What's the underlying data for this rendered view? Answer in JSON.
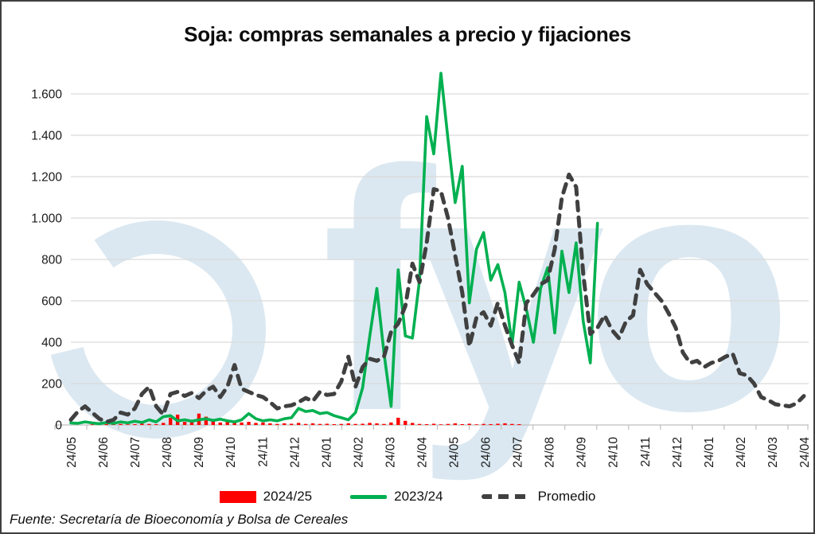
{
  "title": "Soja: compras semanales a precio y fijaciones",
  "source": "Fuente: Secretaría de Bioeconomía y Bolsa de Cereales",
  "watermark": {
    "text": "fyo",
    "color": "#dbe8f1"
  },
  "legend": {
    "items": [
      {
        "label": "2024/25",
        "color": "#ff0000",
        "style": "bar"
      },
      {
        "label": "2023/24",
        "color": "#00b050",
        "style": "line"
      },
      {
        "label": "Promedio",
        "color": "#404040",
        "style": "dash"
      }
    ]
  },
  "chart_data": {
    "type": "line",
    "title": "Soja: compras semanales a precio y fijaciones",
    "xlabel": "",
    "ylabel": "",
    "ylim": [
      0,
      1700
    ],
    "grid": true,
    "legend_position": "bottom",
    "axis_color": "#bfbfbf",
    "grid_color": "#d9d9d9",
    "label_color": "#1a1a1a",
    "weeks_total": 104,
    "x_tick_labels": [
      "24/05",
      "24/06",
      "24/07",
      "24/08",
      "24/09",
      "24/10",
      "24/11",
      "24/12",
      "24/01",
      "24/02",
      "24/03",
      "24/04",
      "24/05",
      "24/06",
      "24/07",
      "24/08",
      "24/09",
      "24/10",
      "24/11",
      "24/12",
      "24/01",
      "24/02",
      "24/03",
      "24/04"
    ],
    "y_ticks": [
      0,
      200,
      400,
      600,
      800,
      1000,
      1200,
      1400,
      1600
    ],
    "y_tick_labels": [
      "0",
      "200",
      "400",
      "600",
      "800",
      "1.000",
      "1.200",
      "1.400",
      "1.600"
    ],
    "series": [
      {
        "name": "2024/25",
        "render": "bar",
        "color": "#ff0000",
        "start_week": 0,
        "values": [
          0,
          0,
          0,
          3,
          2,
          4,
          8,
          5,
          3,
          4,
          6,
          5,
          4,
          10,
          35,
          50,
          15,
          20,
          55,
          40,
          20,
          12,
          15,
          10,
          12,
          15,
          10,
          12,
          8,
          5,
          8,
          6,
          10,
          5,
          8,
          5,
          6,
          4,
          5,
          8,
          5,
          6,
          10,
          8,
          5,
          12,
          35,
          20,
          10,
          5,
          4,
          6,
          3,
          5,
          8,
          4,
          6,
          3,
          5,
          4,
          6,
          8,
          5,
          4
        ]
      },
      {
        "name": "2023/24",
        "render": "line",
        "color": "#00b050",
        "start_week": 0,
        "values": [
          10,
          8,
          15,
          10,
          6,
          12,
          8,
          15,
          10,
          18,
          12,
          25,
          15,
          40,
          45,
          20,
          25,
          18,
          25,
          30,
          22,
          28,
          20,
          15,
          25,
          55,
          30,
          20,
          25,
          20,
          30,
          35,
          80,
          65,
          70,
          55,
          60,
          45,
          35,
          25,
          60,
          180,
          430,
          660,
          350,
          90,
          750,
          430,
          420,
          700,
          1490,
          1310,
          1700,
          1380,
          1075,
          1250,
          590,
          850,
          930,
          700,
          775,
          640,
          390,
          690,
          560,
          400,
          660,
          760,
          445,
          840,
          640,
          880,
          500,
          300,
          975
        ]
      },
      {
        "name": "Promedio",
        "render": "dashed-line",
        "color": "#404040",
        "start_week": 0,
        "values": [
          25,
          65,
          90,
          60,
          30,
          15,
          25,
          60,
          50,
          80,
          150,
          185,
          90,
          50,
          150,
          160,
          140,
          155,
          130,
          165,
          185,
          135,
          185,
          290,
          175,
          160,
          145,
          135,
          110,
          80,
          90,
          95,
          110,
          130,
          115,
          160,
          145,
          150,
          210,
          330,
          185,
          280,
          320,
          310,
          330,
          450,
          490,
          575,
          780,
          690,
          880,
          1140,
          1130,
          1000,
          820,
          640,
          380,
          520,
          545,
          480,
          590,
          480,
          385,
          300,
          590,
          630,
          680,
          700,
          850,
          1100,
          1210,
          1150,
          730,
          440,
          470,
          530,
          460,
          420,
          500,
          530,
          750,
          680,
          640,
          600,
          540,
          470,
          350,
          300,
          310,
          280,
          300,
          310,
          330,
          345,
          250,
          240,
          200,
          135,
          120,
          100,
          95,
          90,
          105,
          140
        ]
      }
    ]
  }
}
